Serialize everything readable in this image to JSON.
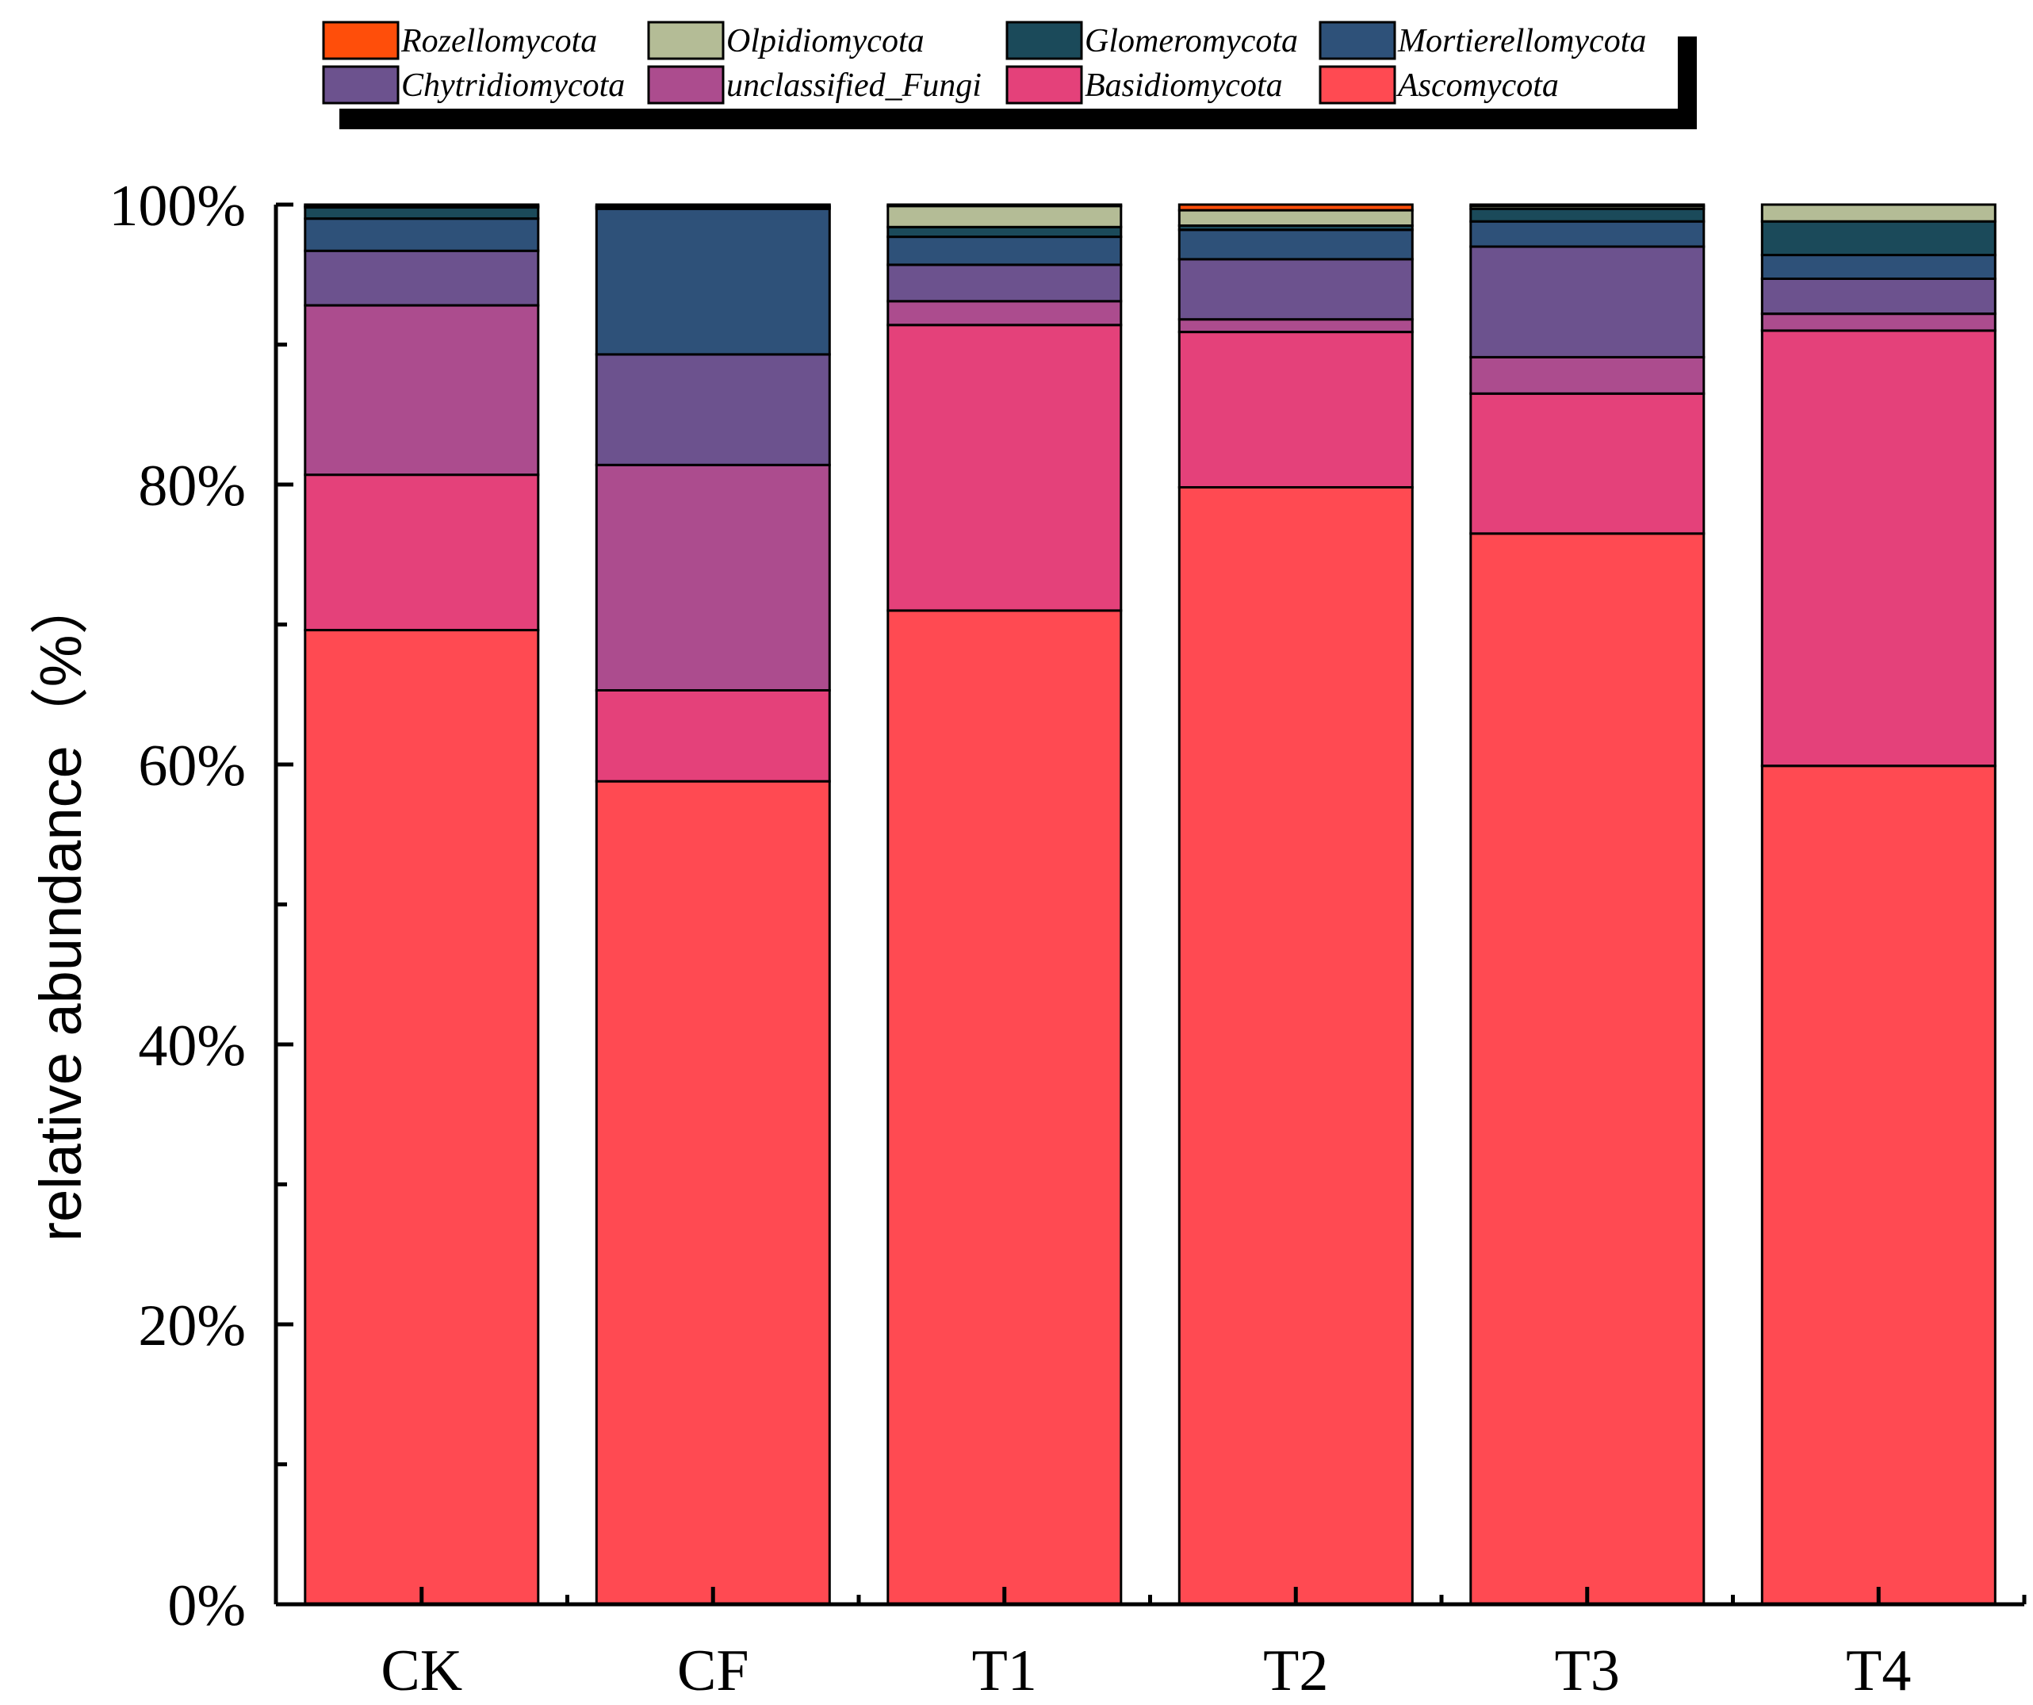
{
  "chart_data": {
    "type": "bar",
    "stacked": true,
    "title": "",
    "xlabel": "",
    "ylabel": "relative abundance（%）",
    "ylim": [
      0,
      100
    ],
    "ytick_labels": [
      "0%",
      "20%",
      "40%",
      "60%",
      "80%",
      "100%"
    ],
    "yticks": [
      0,
      20,
      40,
      60,
      80,
      100
    ],
    "categories": [
      "CK",
      "CF",
      "T1",
      "T2",
      "T3",
      "T4"
    ],
    "legend_position": "top",
    "series": [
      {
        "name": "Ascomycota",
        "color": "#FF4A52",
        "values": [
          69.6,
          58.8,
          71.0,
          79.8,
          76.5,
          59.9
        ]
      },
      {
        "name": "Basidiomycota",
        "color": "#E4417A",
        "values": [
          11.1,
          6.5,
          20.4,
          11.1,
          10.0,
          31.1
        ]
      },
      {
        "name": "unclassified_Fungi",
        "color": "#AC4C8E",
        "values": [
          12.1,
          16.1,
          1.7,
          0.9,
          2.6,
          1.2
        ]
      },
      {
        "name": "Chytridiomycota",
        "color": "#6C528E",
        "values": [
          3.9,
          7.9,
          2.6,
          4.3,
          7.9,
          2.5
        ]
      },
      {
        "name": "Mortierellomycota",
        "color": "#2E5179",
        "values": [
          2.3,
          10.4,
          2.0,
          2.1,
          1.8,
          1.7
        ]
      },
      {
        "name": "Glomeromycota",
        "color": "#1B4A5A",
        "values": [
          0.8,
          0.1,
          0.7,
          0.3,
          0.9,
          2.4
        ]
      },
      {
        "name": "Olpidiomycota",
        "color": "#B4BC96",
        "values": [
          0.1,
          0.1,
          1.5,
          1.1,
          0.2,
          1.2
        ]
      },
      {
        "name": "Rozellomycota",
        "color": "#FF4E0A",
        "values": [
          0.1,
          0.1,
          0.1,
          0.4,
          0.1,
          0.0
        ]
      }
    ],
    "legend_order": [
      "Rozellomycota",
      "Olpidiomycota",
      "Glomeromycota",
      "Mortierellomycota",
      "Chytridiomycota",
      "unclassified_Fungi",
      "Basidiomycota",
      "Ascomycota"
    ],
    "legend_labels": {
      "Rozellomycota": "Rozellomycota",
      "Olpidiomycota": "Olpidiomycota",
      "Glomeromycota": "Glomeromycota",
      "Mortierellomycota": "Mortierellomycota",
      "Chytridiomycota": "Chytridiomycota",
      "unclassified_Fungi": "unclassified_Fungi",
      "Basidiomycota": "Basidiomycota",
      "Ascomycota": "Ascomycota"
    }
  }
}
